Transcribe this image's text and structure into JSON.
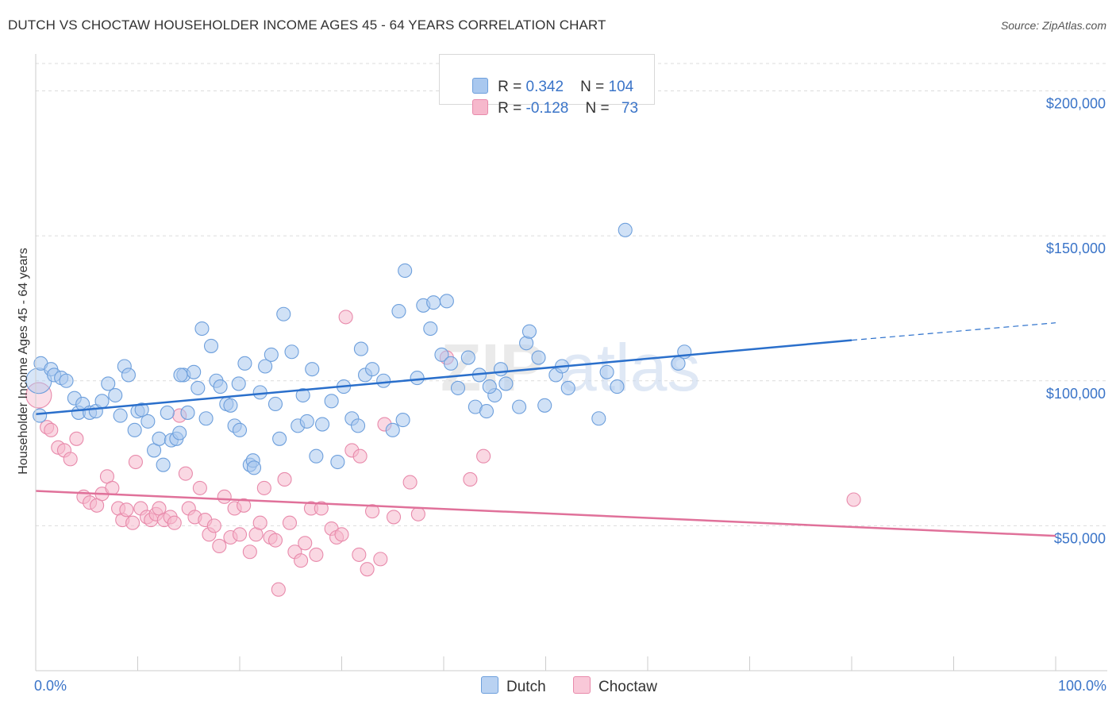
{
  "title": "DUTCH VS CHOCTAW HOUSEHOLDER INCOME AGES 45 - 64 YEARS CORRELATION CHART",
  "source": "Source: ZipAtlas.com",
  "watermark": {
    "zip": "ZIP",
    "atlas": "atlas"
  },
  "legend_top": {
    "dutch": {
      "r_label": "R = ",
      "r_value": "0.342",
      "n_label": "N = ",
      "n_value": "104"
    },
    "choctaw": {
      "r_label": "R = ",
      "r_value": "-0.128",
      "n_label": "N = ",
      "n_value": "73"
    }
  },
  "legend_bottom": {
    "dutch": "Dutch",
    "choctaw": "Choctaw"
  },
  "colors": {
    "dutch_fill": "#a9c8ef",
    "dutch_stroke": "#6d9fdc",
    "dutch_line": "#2a6fcb",
    "choctaw_fill": "#f6b8cc",
    "choctaw_stroke": "#e88aab",
    "choctaw_line": "#e0719a",
    "grid": "#dcdcdc",
    "axis_text": "#3a74c8"
  },
  "chart_data": {
    "type": "scatter",
    "title": "DUTCH VS CHOCTAW HOUSEHOLDER INCOME AGES 45 - 64 YEARS CORRELATION CHART",
    "xlabel": "",
    "ylabel": "Householder Income Ages 45 - 64 years",
    "xlim": [
      0,
      100
    ],
    "ylim": [
      0,
      210000
    ],
    "x_tick_labels": [
      "0.0%",
      "100.0%"
    ],
    "y_ticks": [
      50000,
      100000,
      150000,
      200000
    ],
    "y_tick_labels": [
      "$50,000",
      "$100,000",
      "$150,000",
      "$200,000"
    ],
    "series": [
      {
        "name": "Dutch",
        "r": 0.342,
        "n": 104,
        "trend": {
          "x0": 0,
          "y0": 88500,
          "x1": 80,
          "y1": 114000,
          "dashed_to_x": 100,
          "dashed_to_y": 120000
        },
        "points": [
          [
            0.3,
            100000
          ],
          [
            0.4,
            88000
          ],
          [
            0.5,
            106000
          ],
          [
            1.5,
            104000
          ],
          [
            1.8,
            102000
          ],
          [
            2.5,
            101000
          ],
          [
            3.0,
            100000
          ],
          [
            3.8,
            94000
          ],
          [
            4.2,
            89000
          ],
          [
            4.6,
            92000
          ],
          [
            5.3,
            89000
          ],
          [
            5.9,
            89500
          ],
          [
            6.5,
            93000
          ],
          [
            7.1,
            99000
          ],
          [
            7.8,
            95000
          ],
          [
            8.3,
            88000
          ],
          [
            8.7,
            105000
          ],
          [
            9.7,
            83000
          ],
          [
            10.0,
            89500
          ],
          [
            10.4,
            90000
          ],
          [
            11.0,
            86000
          ],
          [
            11.6,
            76000
          ],
          [
            12.1,
            80000
          ],
          [
            12.5,
            71000
          ],
          [
            12.9,
            89000
          ],
          [
            13.3,
            79500
          ],
          [
            13.8,
            80000
          ],
          [
            14.1,
            82000
          ],
          [
            14.5,
            102000
          ],
          [
            14.9,
            89000
          ],
          [
            15.5,
            103000
          ],
          [
            15.9,
            97500
          ],
          [
            16.3,
            118000
          ],
          [
            16.7,
            87000
          ],
          [
            17.2,
            112000
          ],
          [
            17.7,
            100000
          ],
          [
            18.1,
            98000
          ],
          [
            18.7,
            92000
          ],
          [
            19.1,
            91500
          ],
          [
            19.5,
            84500
          ],
          [
            20.0,
            83000
          ],
          [
            20.5,
            106000
          ],
          [
            21.0,
            71000
          ],
          [
            21.3,
            72500
          ],
          [
            22.0,
            96000
          ],
          [
            22.5,
            105000
          ],
          [
            23.1,
            109000
          ],
          [
            23.5,
            92000
          ],
          [
            23.9,
            80000
          ],
          [
            24.3,
            123000
          ],
          [
            25.1,
            110000
          ],
          [
            25.7,
            84500
          ],
          [
            26.2,
            95000
          ],
          [
            26.6,
            86000
          ],
          [
            27.1,
            104000
          ],
          [
            27.5,
            74000
          ],
          [
            28.1,
            85000
          ],
          [
            29.0,
            93000
          ],
          [
            29.6,
            72000
          ],
          [
            30.2,
            98000
          ],
          [
            31.0,
            87000
          ],
          [
            31.6,
            84500
          ],
          [
            31.9,
            111000
          ],
          [
            32.3,
            102000
          ],
          [
            33.0,
            104000
          ],
          [
            34.1,
            100000
          ],
          [
            35.0,
            83000
          ],
          [
            35.6,
            124000
          ],
          [
            36.2,
            138000
          ],
          [
            36.0,
            86500
          ],
          [
            37.4,
            101000
          ],
          [
            38.0,
            126000
          ],
          [
            38.7,
            118000
          ],
          [
            39.0,
            127000
          ],
          [
            39.8,
            109000
          ],
          [
            40.3,
            127500
          ],
          [
            40.7,
            106000
          ],
          [
            41.4,
            97500
          ],
          [
            42.4,
            108000
          ],
          [
            43.1,
            91000
          ],
          [
            43.5,
            102000
          ],
          [
            44.2,
            89500
          ],
          [
            45.0,
            95000
          ],
          [
            45.6,
            104000
          ],
          [
            46.1,
            99000
          ],
          [
            47.4,
            91000
          ],
          [
            48.1,
            113000
          ],
          [
            48.4,
            117000
          ],
          [
            49.3,
            108000
          ],
          [
            49.9,
            91500
          ],
          [
            51.0,
            102000
          ],
          [
            51.6,
            105000
          ],
          [
            52.2,
            97500
          ],
          [
            55.2,
            87000
          ],
          [
            56.0,
            103000
          ],
          [
            57.0,
            98000
          ],
          [
            57.8,
            152000
          ],
          [
            63.0,
            106000
          ],
          [
            63.6,
            110000
          ],
          [
            21.4,
            70000
          ],
          [
            14.2,
            102000
          ],
          [
            9.1,
            102000
          ],
          [
            19.9,
            99000
          ],
          [
            44.5,
            98000
          ]
        ]
      },
      {
        "name": "Choctaw",
        "r": -0.128,
        "n": 73,
        "trend": {
          "x0": 0,
          "y0": 62000,
          "x1": 100,
          "y1": 46500
        },
        "points": [
          [
            0.3,
            95000
          ],
          [
            1.1,
            84000
          ],
          [
            1.5,
            83000
          ],
          [
            2.2,
            77000
          ],
          [
            2.8,
            76000
          ],
          [
            3.4,
            73000
          ],
          [
            4.0,
            80000
          ],
          [
            4.7,
            60000
          ],
          [
            5.3,
            58000
          ],
          [
            6.0,
            57000
          ],
          [
            6.5,
            61000
          ],
          [
            7.0,
            67000
          ],
          [
            7.5,
            63000
          ],
          [
            8.1,
            56000
          ],
          [
            8.5,
            52000
          ],
          [
            8.9,
            55500
          ],
          [
            9.5,
            51000
          ],
          [
            9.8,
            72000
          ],
          [
            10.3,
            56000
          ],
          [
            10.9,
            53000
          ],
          [
            11.3,
            52000
          ],
          [
            11.8,
            54000
          ],
          [
            12.1,
            56000
          ],
          [
            12.6,
            52000
          ],
          [
            13.2,
            53000
          ],
          [
            13.6,
            51000
          ],
          [
            14.1,
            88000
          ],
          [
            14.7,
            68000
          ],
          [
            15.0,
            56000
          ],
          [
            15.6,
            53000
          ],
          [
            16.1,
            63000
          ],
          [
            16.6,
            52000
          ],
          [
            17.0,
            47000
          ],
          [
            17.5,
            50000
          ],
          [
            18.0,
            43000
          ],
          [
            18.5,
            60000
          ],
          [
            19.1,
            46000
          ],
          [
            19.5,
            56000
          ],
          [
            20.0,
            47000
          ],
          [
            20.4,
            57000
          ],
          [
            21.0,
            41000
          ],
          [
            21.6,
            47000
          ],
          [
            22.0,
            51000
          ],
          [
            22.4,
            63000
          ],
          [
            23.0,
            46000
          ],
          [
            23.5,
            45000
          ],
          [
            23.8,
            28000
          ],
          [
            24.4,
            66000
          ],
          [
            24.9,
            51000
          ],
          [
            25.4,
            41000
          ],
          [
            26.0,
            38000
          ],
          [
            26.4,
            44000
          ],
          [
            27.0,
            56000
          ],
          [
            27.5,
            40000
          ],
          [
            28.0,
            56000
          ],
          [
            29.0,
            49000
          ],
          [
            29.5,
            46000
          ],
          [
            30.0,
            47000
          ],
          [
            30.4,
            122000
          ],
          [
            31.0,
            76000
          ],
          [
            31.7,
            40000
          ],
          [
            32.5,
            35000
          ],
          [
            33.0,
            55000
          ],
          [
            33.8,
            38500
          ],
          [
            34.2,
            85000
          ],
          [
            35.1,
            53000
          ],
          [
            36.7,
            65000
          ],
          [
            37.5,
            54000
          ],
          [
            40.3,
            108000
          ],
          [
            42.6,
            66000
          ],
          [
            43.9,
            74000
          ],
          [
            80.2,
            59000
          ],
          [
            31.8,
            74000
          ]
        ]
      }
    ]
  }
}
